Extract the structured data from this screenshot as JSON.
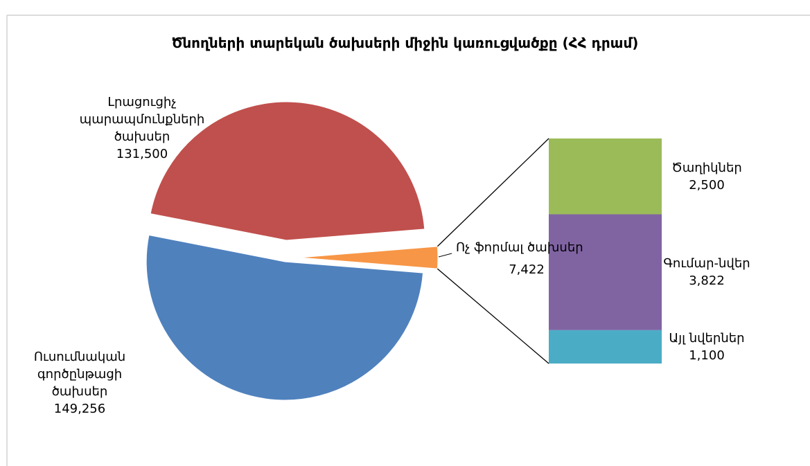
{
  "chart_data": {
    "type": "pie-of-bar",
    "title": "Ծնողների տարեկան ծախսերի միջին կառուցվածքը (ՀՀ դրամ)",
    "categories": [
      "Լրացուցիչ պարապմունքների ծախսեր",
      "Ուսումնական գործընթացի ծախսեր",
      "Ոչ ֆորմալ ծախսեր"
    ],
    "values": [
      131500,
      149256,
      7422
    ],
    "value_labels": [
      "131,500",
      "149,256",
      "7,422"
    ],
    "colors": [
      "#c0504d",
      "#4f81bd",
      "#f79646"
    ],
    "bar": {
      "categories": [
        "Ծաղիկներ",
        "Գումար-նվեր",
        "Այլ նվերներ"
      ],
      "values": [
        2500,
        3822,
        1100
      ],
      "value_labels": [
        "2,500",
        "3,822",
        "1,100"
      ],
      "colors": [
        "#9bbb59",
        "#8064a2",
        "#4bacc6"
      ]
    }
  }
}
